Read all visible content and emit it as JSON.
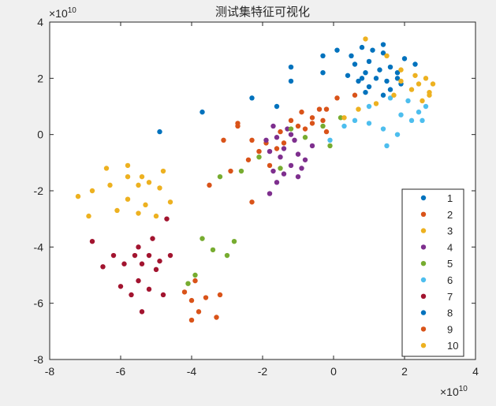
{
  "chart_data": {
    "type": "scatter",
    "title": "测试集特征可视化",
    "xlabel": "",
    "ylabel": "",
    "xlim": [
      -8,
      4
    ],
    "ylim": [
      -8,
      4
    ],
    "x_ticks": [
      "-8",
      "-6",
      "-4",
      "-2",
      "0",
      "2",
      "4"
    ],
    "y_ticks": [
      "4",
      "2",
      "0",
      "-2",
      "-4",
      "-6",
      "-8"
    ],
    "x_exponent": {
      "base": "×10",
      "power": "10"
    },
    "y_exponent": {
      "base": "×10",
      "power": "10"
    },
    "grid": false,
    "legend_position": "bottom-right",
    "series": [
      {
        "name": "1",
        "color": "#0072BD",
        "points": [
          [
            0.8,
            3.1
          ],
          [
            1.1,
            3.0
          ],
          [
            1.4,
            2.9
          ],
          [
            1.0,
            2.6
          ],
          [
            0.6,
            2.5
          ],
          [
            1.6,
            2.4
          ],
          [
            1.3,
            2.3
          ],
          [
            0.9,
            2.2
          ],
          [
            1.8,
            2.2
          ],
          [
            0.4,
            2.1
          ],
          [
            1.2,
            2.0
          ],
          [
            1.5,
            1.9
          ],
          [
            0.7,
            1.9
          ],
          [
            1.9,
            1.8
          ],
          [
            1.0,
            1.7
          ],
          [
            1.6,
            1.6
          ],
          [
            2.0,
            2.7
          ],
          [
            0.9,
            1.5
          ],
          [
            1.4,
            1.4
          ],
          [
            0.5,
            2.8
          ]
        ]
      },
      {
        "name": "2",
        "color": "#D95319",
        "points": [
          [
            -0.4,
            0.9
          ],
          [
            -0.6,
            0.6
          ],
          [
            -1.0,
            0.3
          ],
          [
            -1.5,
            0.1
          ],
          [
            -1.9,
            -0.3
          ],
          [
            -2.3,
            -0.2
          ],
          [
            -2.1,
            -0.6
          ],
          [
            -2.4,
            -0.9
          ],
          [
            -1.6,
            -0.5
          ],
          [
            -0.8,
            0.2
          ],
          [
            -1.2,
            0.5
          ],
          [
            -2.7,
            0.3
          ],
          [
            -3.1,
            -0.2
          ],
          [
            -2.9,
            -1.3
          ],
          [
            -3.5,
            -1.8
          ],
          [
            -1.8,
            -1.1
          ],
          [
            -0.2,
            0.1
          ],
          [
            -1.4,
            -0.3
          ]
        ]
      },
      {
        "name": "3",
        "color": "#EDB120",
        "points": [
          [
            -7.2,
            -2.2
          ],
          [
            -6.8,
            -2.0
          ],
          [
            -6.3,
            -1.8
          ],
          [
            -5.8,
            -1.5
          ],
          [
            -5.5,
            -1.8
          ],
          [
            -5.2,
            -1.7
          ],
          [
            -4.9,
            -1.9
          ],
          [
            -5.8,
            -2.3
          ],
          [
            -5.3,
            -2.5
          ],
          [
            -6.1,
            -2.7
          ],
          [
            -5.5,
            -2.8
          ],
          [
            -5.0,
            -2.9
          ],
          [
            -6.9,
            -2.9
          ],
          [
            -5.8,
            -1.1
          ],
          [
            -4.8,
            -1.3
          ],
          [
            -5.4,
            -1.5
          ],
          [
            -6.4,
            -1.2
          ],
          [
            -4.6,
            -2.4
          ]
        ]
      },
      {
        "name": "4",
        "color": "#7E2F8E",
        "points": [
          [
            -1.7,
            0.3
          ],
          [
            -1.3,
            0.2
          ],
          [
            -1.6,
            -0.1
          ],
          [
            -1.1,
            -0.2
          ],
          [
            -1.4,
            -0.5
          ],
          [
            -1.8,
            -0.6
          ],
          [
            -1.5,
            -0.8
          ],
          [
            -1.0,
            -0.7
          ],
          [
            -1.2,
            -1.1
          ],
          [
            -1.7,
            -1.3
          ],
          [
            -1.4,
            -1.4
          ],
          [
            -0.9,
            -1.2
          ],
          [
            -0.6,
            -0.4
          ],
          [
            -1.9,
            -0.2
          ],
          [
            -1.2,
            0.0
          ],
          [
            -0.8,
            -0.9
          ],
          [
            -1.6,
            -1.7
          ],
          [
            -1.8,
            -2.1
          ],
          [
            -1.0,
            -1.5
          ]
        ]
      },
      {
        "name": "5",
        "color": "#77AC30",
        "points": [
          [
            -3.7,
            -3.7
          ],
          [
            -3.4,
            -4.1
          ],
          [
            -3.0,
            -4.3
          ],
          [
            -2.8,
            -3.8
          ],
          [
            -3.9,
            -5.0
          ],
          [
            -4.1,
            -5.3
          ],
          [
            -3.2,
            -1.5
          ],
          [
            -2.6,
            -1.3
          ],
          [
            -2.1,
            -0.8
          ],
          [
            -1.5,
            -1.2
          ],
          [
            -1.2,
            0.2
          ],
          [
            -0.8,
            -0.1
          ],
          [
            -0.3,
            0.3
          ],
          [
            0.2,
            0.6
          ],
          [
            -0.1,
            -0.4
          ]
        ]
      },
      {
        "name": "6",
        "color": "#4DBEEE",
        "points": [
          [
            0.6,
            0.5
          ],
          [
            1.0,
            0.4
          ],
          [
            1.4,
            0.2
          ],
          [
            1.8,
            0.0
          ],
          [
            1.5,
            -0.4
          ],
          [
            1.9,
            0.7
          ],
          [
            2.2,
            0.5
          ],
          [
            2.4,
            0.8
          ],
          [
            2.6,
            1.0
          ],
          [
            2.1,
            1.2
          ],
          [
            1.6,
            1.3
          ],
          [
            1.0,
            1.0
          ],
          [
            0.3,
            0.3
          ],
          [
            -0.1,
            -0.2
          ],
          [
            2.5,
            0.5
          ]
        ]
      },
      {
        "name": "7",
        "color": "#A2142F",
        "points": [
          [
            -6.8,
            -3.8
          ],
          [
            -6.5,
            -4.7
          ],
          [
            -6.2,
            -4.3
          ],
          [
            -5.9,
            -4.6
          ],
          [
            -5.6,
            -4.3
          ],
          [
            -5.4,
            -4.6
          ],
          [
            -5.2,
            -4.3
          ],
          [
            -5.0,
            -4.8
          ],
          [
            -4.9,
            -4.5
          ],
          [
            -4.6,
            -4.3
          ],
          [
            -4.7,
            -3.0
          ],
          [
            -5.1,
            -3.7
          ],
          [
            -5.5,
            -5.2
          ],
          [
            -5.2,
            -5.5
          ],
          [
            -4.8,
            -5.7
          ],
          [
            -5.7,
            -5.7
          ],
          [
            -6.0,
            -5.4
          ],
          [
            -5.4,
            -6.3
          ],
          [
            -5.5,
            -4.0
          ]
        ]
      },
      {
        "name": "8",
        "color": "#0072BD",
        "points": [
          [
            -4.9,
            0.1
          ],
          [
            -3.7,
            0.8
          ],
          [
            -2.3,
            1.3
          ],
          [
            -1.6,
            1.0
          ],
          [
            -1.2,
            2.4
          ],
          [
            -1.2,
            1.9
          ],
          [
            -0.3,
            2.8
          ],
          [
            0.1,
            3.0
          ],
          [
            -0.3,
            2.2
          ],
          [
            1.4,
            3.2
          ],
          [
            2.3,
            2.5
          ],
          [
            0.8,
            2.0
          ],
          [
            1.8,
            2.0
          ]
        ]
      },
      {
        "name": "9",
        "color": "#D95319",
        "points": [
          [
            -4.2,
            -5.6
          ],
          [
            -3.9,
            -5.2
          ],
          [
            -4.0,
            -5.9
          ],
          [
            -3.8,
            -6.3
          ],
          [
            -3.6,
            -5.8
          ],
          [
            -3.3,
            -6.5
          ],
          [
            -3.2,
            -5.7
          ],
          [
            -4.0,
            -6.6
          ],
          [
            -2.7,
            0.4
          ],
          [
            -2.3,
            -2.4
          ],
          [
            -0.6,
            0.4
          ],
          [
            -0.2,
            0.9
          ],
          [
            0.1,
            1.3
          ],
          [
            0.6,
            1.4
          ],
          [
            -0.9,
            0.8
          ],
          [
            -0.3,
            0.5
          ]
        ]
      },
      {
        "name": "10",
        "color": "#EDB120",
        "points": [
          [
            0.9,
            3.4
          ],
          [
            1.5,
            2.8
          ],
          [
            1.9,
            2.3
          ],
          [
            2.3,
            2.1
          ],
          [
            2.6,
            2.0
          ],
          [
            2.8,
            1.8
          ],
          [
            2.7,
            1.4
          ],
          [
            2.5,
            1.2
          ],
          [
            2.2,
            1.6
          ],
          [
            1.7,
            1.4
          ],
          [
            1.2,
            1.1
          ],
          [
            0.7,
            0.9
          ],
          [
            0.3,
            0.6
          ],
          [
            2.4,
            1.8
          ],
          [
            1.9,
            1.9
          ],
          [
            2.7,
            1.5
          ]
        ]
      }
    ]
  }
}
